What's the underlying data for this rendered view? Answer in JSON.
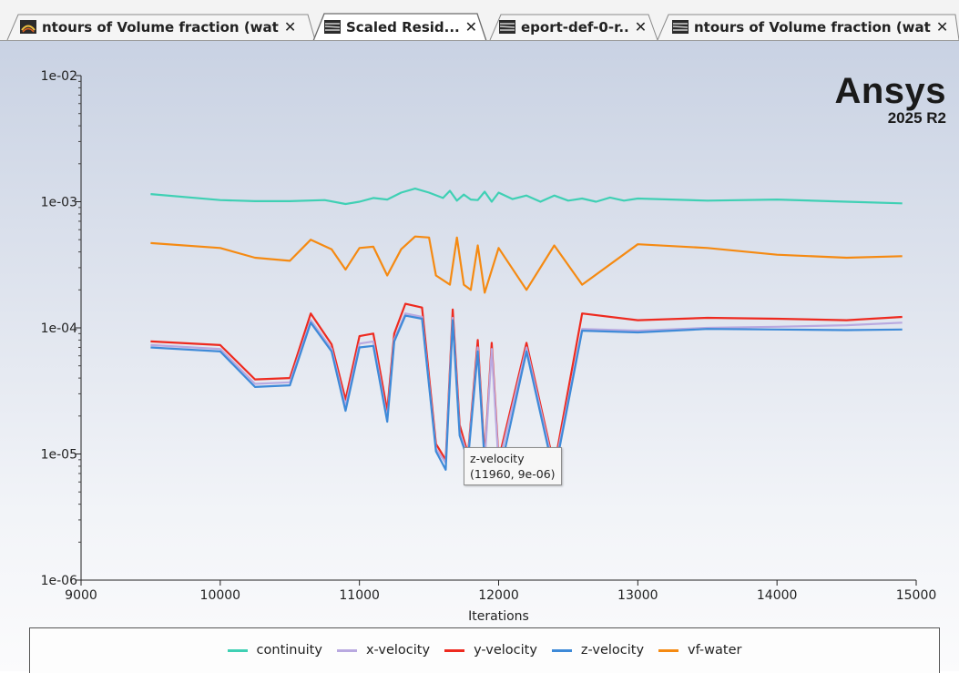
{
  "tabs": [
    {
      "label": "ntours of Volume fraction (wat",
      "active": false
    },
    {
      "label": "Scaled Resid...",
      "active": true
    },
    {
      "label": "eport-def-0-r..",
      "active": false
    },
    {
      "label": "ntours of Volume fraction (wat",
      "active": false
    }
  ],
  "logo": {
    "brand": "Ansys",
    "version": "2025 R2"
  },
  "tooltip": {
    "series": "z-velocity",
    "value": "(11960, 9e-06)"
  },
  "colors": {
    "continuity": "#3fd0b4",
    "x-velocity": "#b9a9e0",
    "y-velocity": "#ee2a1f",
    "z-velocity": "#3e8ad8",
    "vf-water": "#f58a12"
  },
  "chart_data": {
    "type": "line",
    "title": "",
    "xlabel": "Iterations",
    "ylabel": "",
    "xlim": [
      9000,
      15000
    ],
    "ylim": [
      1e-06,
      0.01
    ],
    "yscale": "log",
    "xticks": [
      9000,
      10000,
      11000,
      12000,
      13000,
      14000,
      15000
    ],
    "xtick_labels": [
      "9000",
      "10000",
      "11000",
      "12000",
      "13000",
      "14000",
      "15000"
    ],
    "yticks": [
      1e-06,
      1e-05,
      0.0001,
      0.001,
      0.01
    ],
    "ytick_labels": [
      "1e-06",
      "1e-05",
      "1e-04",
      "1e-03",
      "1e-02"
    ],
    "legend_position": "bottom",
    "series": [
      {
        "name": "continuity",
        "x": [
          9500,
          10000,
          10250,
          10500,
          10750,
          10900,
          11000,
          11100,
          11200,
          11300,
          11400,
          11500,
          11600,
          11650,
          11700,
          11750,
          11800,
          11850,
          11900,
          11950,
          12000,
          12100,
          12200,
          12300,
          12400,
          12500,
          12600,
          12700,
          12800,
          12900,
          13000,
          13500,
          14000,
          14500,
          14900
        ],
        "y": [
          0.00115,
          0.00103,
          0.00101,
          0.00101,
          0.00103,
          0.00096,
          0.001,
          0.00107,
          0.00104,
          0.00118,
          0.00127,
          0.00118,
          0.00107,
          0.00122,
          0.00102,
          0.00114,
          0.00104,
          0.00103,
          0.0012,
          0.001,
          0.00118,
          0.00105,
          0.00112,
          0.001,
          0.00112,
          0.00102,
          0.00106,
          0.001,
          0.00108,
          0.00102,
          0.00106,
          0.00102,
          0.00104,
          0.001,
          0.00097
        ]
      },
      {
        "name": "x-velocity",
        "x": [
          9500,
          10000,
          10250,
          10500,
          10650,
          10800,
          10900,
          11000,
          11100,
          11200,
          11250,
          11330,
          11450,
          11550,
          11620,
          11670,
          11720,
          11780,
          11850,
          11900,
          11950,
          12000,
          12200,
          12400,
          12600,
          13000,
          13500,
          14000,
          14500,
          14900
        ],
        "y": [
          7.3e-05,
          6.8e-05,
          3.6e-05,
          3.7e-05,
          0.000115,
          6.8e-05,
          2.4e-05,
          7.5e-05,
          7.8e-05,
          1.9e-05,
          8.1e-05,
          0.00013,
          0.000122,
          1.1e-05,
          8.5e-06,
          0.00012,
          1.5e-05,
          9.5e-06,
          7e-05,
          8.7e-06,
          6.8e-05,
          8.2e-06,
          7e-05,
          7.5e-06,
          9.8e-05,
          9.5e-05,
          0.0001,
          0.000102,
          0.000105,
          0.00011
        ]
      },
      {
        "name": "y-velocity",
        "x": [
          9500,
          10000,
          10250,
          10500,
          10650,
          10800,
          10900,
          11000,
          11100,
          11200,
          11250,
          11330,
          11450,
          11550,
          11620,
          11670,
          11720,
          11780,
          11850,
          11900,
          11950,
          12000,
          12200,
          12400,
          12600,
          13000,
          13500,
          14000,
          14500,
          14900
        ],
        "y": [
          7.8e-05,
          7.3e-05,
          3.9e-05,
          4e-05,
          0.00013,
          7.4e-05,
          2.7e-05,
          8.6e-05,
          9e-05,
          2.2e-05,
          9e-05,
          0.000155,
          0.000145,
          1.2e-05,
          9e-06,
          0.00014,
          1.7e-05,
          1e-05,
          8e-05,
          9.5e-06,
          7.6e-05,
          9e-06,
          7.6e-05,
          8e-06,
          0.00013,
          0.000115,
          0.00012,
          0.000118,
          0.000115,
          0.000122
        ]
      },
      {
        "name": "z-velocity",
        "x": [
          9500,
          10000,
          10250,
          10500,
          10650,
          10800,
          10900,
          11000,
          11100,
          11200,
          11250,
          11330,
          11450,
          11550,
          11620,
          11670,
          11720,
          11780,
          11850,
          11900,
          11960,
          12000,
          12200,
          12400,
          12600,
          13000,
          13500,
          14000,
          14500,
          14900
        ],
        "y": [
          7e-05,
          6.5e-05,
          3.4e-05,
          3.5e-05,
          0.00011,
          6.5e-05,
          2.2e-05,
          7e-05,
          7.2e-05,
          1.8e-05,
          7.8e-05,
          0.000125,
          0.000118,
          1.05e-05,
          7.5e-06,
          0.000115,
          1.4e-05,
          9e-06,
          6.5e-05,
          8.5e-06,
          9e-06,
          6.4e-06,
          6.5e-05,
          6.8e-06,
          9.5e-05,
          9.2e-05,
          9.8e-05,
          9.7e-05,
          9.6e-05,
          9.7e-05
        ]
      },
      {
        "name": "vf-water",
        "x": [
          9500,
          10000,
          10250,
          10500,
          10650,
          10800,
          10900,
          11000,
          11100,
          11200,
          11300,
          11400,
          11500,
          11550,
          11650,
          11700,
          11750,
          11800,
          11850,
          11900,
          12000,
          12200,
          12400,
          12600,
          13000,
          13500,
          14000,
          14500,
          14900
        ],
        "y": [
          0.00047,
          0.00043,
          0.00036,
          0.00034,
          0.0005,
          0.00042,
          0.00029,
          0.00043,
          0.00044,
          0.00026,
          0.00042,
          0.00053,
          0.00052,
          0.00026,
          0.00022,
          0.00052,
          0.00022,
          0.0002,
          0.00045,
          0.00019,
          0.00043,
          0.0002,
          0.00045,
          0.00022,
          0.00046,
          0.00043,
          0.00038,
          0.00036,
          0.00037
        ]
      }
    ]
  }
}
